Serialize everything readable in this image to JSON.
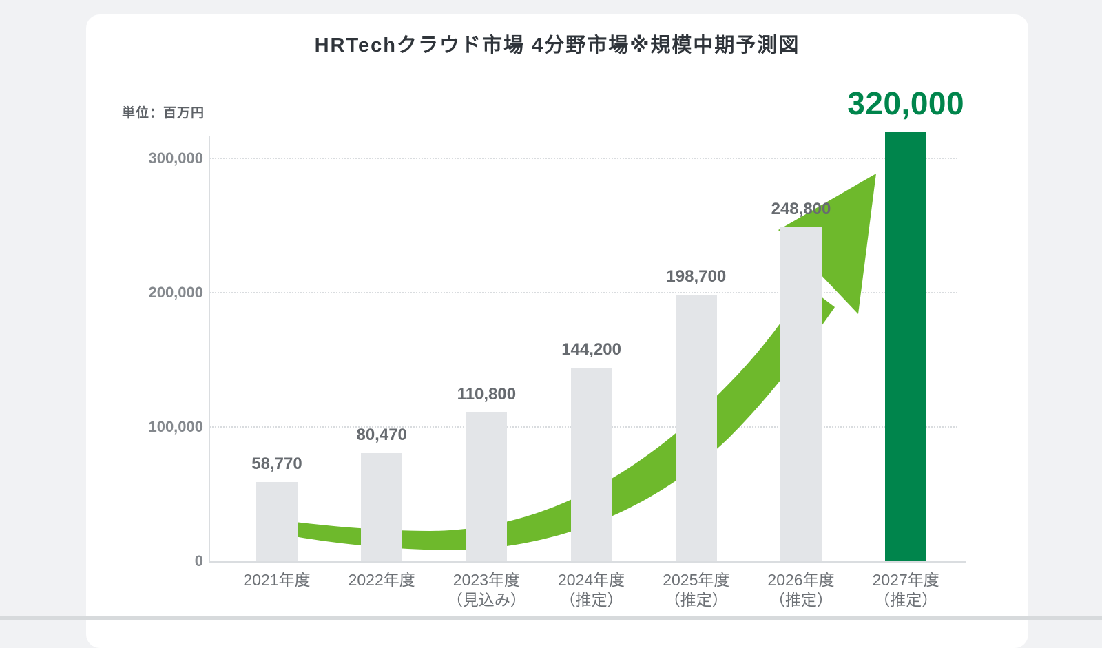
{
  "title": "HRTechクラウド市場 4分野市場※規模中期予測図",
  "unit_label": "単位：百万円",
  "chart_data": {
    "type": "bar",
    "title": "HRTechクラウド市場 4分野市場※規模中期予測図",
    "unit": "百万円",
    "categories": [
      "2021年度",
      "2022年度",
      "2023年度",
      "2024年度",
      "2025年度",
      "2026年度",
      "2027年度"
    ],
    "category_notes": [
      "",
      "",
      "（見込み）",
      "（推定）",
      "（推定）",
      "（推定）",
      "（推定）"
    ],
    "values": [
      58770,
      80470,
      110800,
      144200,
      198700,
      248800,
      320000
    ],
    "value_labels": [
      "58,770",
      "80,470",
      "110,800",
      "144,200",
      "198,700",
      "248,800",
      "320,000"
    ],
    "ylabel": "単位：百万円",
    "yticks": [
      0,
      100000,
      200000,
      300000
    ],
    "ytick_labels": [
      "0",
      "100,000",
      "200,000",
      "300,000"
    ],
    "ylim": [
      0,
      330000
    ],
    "grid": "horizontal dotted",
    "legend": "none",
    "highlight_index": 6,
    "annotation": "curved upward growth arrow from 2021 to 2027",
    "colors": {
      "bar": "#e3e5e8",
      "highlight_bar": "#00854c",
      "arrow": "#6eb92c",
      "value_label": "#676b70",
      "highlight_value_label": "#00854c",
      "tick_label": "#84888d",
      "axis_line": "#dadde0",
      "title_text": "#2f343a",
      "card_background": "#ffffff",
      "page_background": "#f1f2f4"
    }
  }
}
